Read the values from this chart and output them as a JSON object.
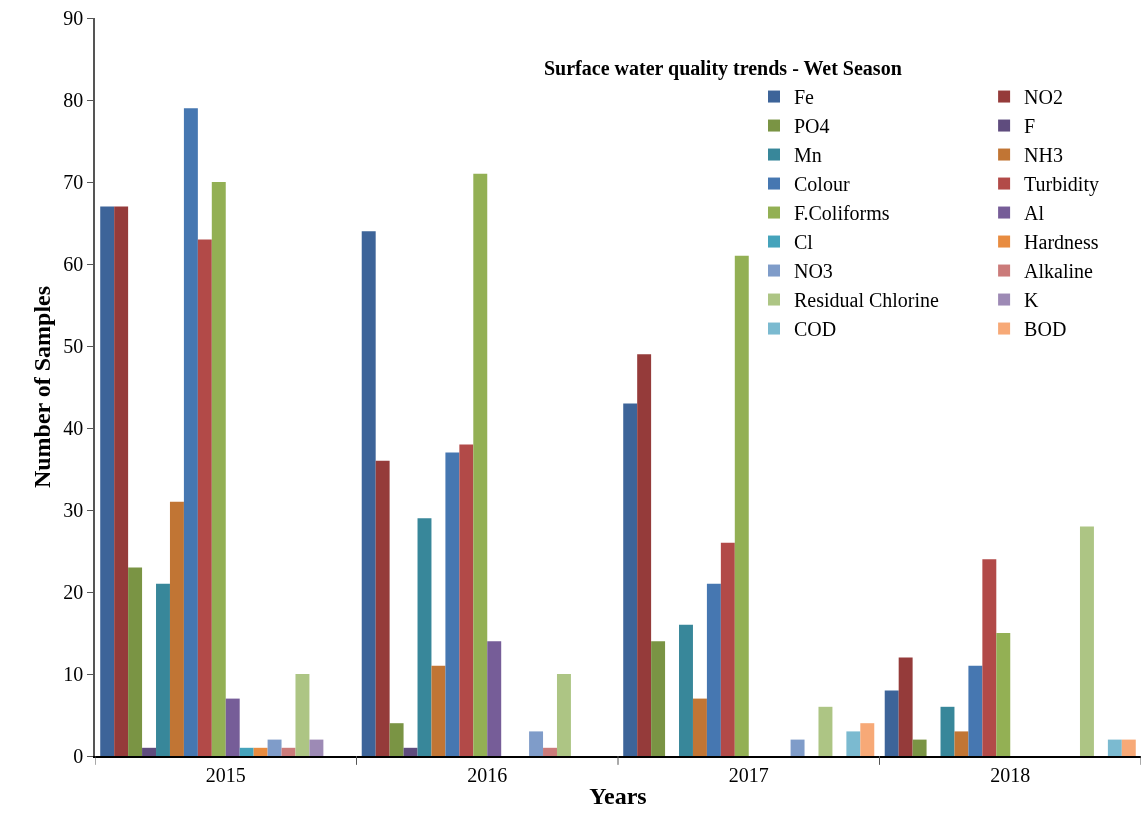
{
  "chart_data": {
    "type": "bar",
    "title": "Surface water quality trends - Wet Season",
    "xlabel": "Years",
    "ylabel": "Number of Samples",
    "categories": [
      "2015",
      "2016",
      "2017",
      "2018"
    ],
    "ylim": [
      0,
      90
    ],
    "yticks": [
      0,
      10,
      20,
      30,
      40,
      50,
      60,
      70,
      80,
      90
    ],
    "legend": "top right",
    "series": [
      {
        "name": "Fe",
        "color": "#3d6499",
        "values": [
          67,
          64,
          43,
          8
        ]
      },
      {
        "name": "NO2",
        "color": "#953b3a",
        "values": [
          67,
          36,
          49,
          12
        ]
      },
      {
        "name": "PO4",
        "color": "#7a9444",
        "values": [
          23,
          4,
          14,
          2
        ]
      },
      {
        "name": "F",
        "color": "#5f4c7e",
        "values": [
          1,
          1,
          0,
          0
        ]
      },
      {
        "name": "Mn",
        "color": "#38879a",
        "values": [
          21,
          29,
          16,
          6
        ]
      },
      {
        "name": "NH3",
        "color": "#c17534",
        "values": [
          31,
          11,
          7,
          3
        ]
      },
      {
        "name": "Colour",
        "color": "#4677b1",
        "values": [
          79,
          37,
          21,
          11
        ]
      },
      {
        "name": "Turbidity",
        "color": "#b24a48",
        "values": [
          63,
          38,
          26,
          24
        ]
      },
      {
        "name": "F.Coliforms",
        "color": "#93b054",
        "values": [
          70,
          71,
          61,
          15
        ]
      },
      {
        "name": "Al",
        "color": "#765d98",
        "values": [
          7,
          14,
          0,
          0
        ]
      },
      {
        "name": "Cl",
        "color": "#45a3bb",
        "values": [
          1,
          0,
          0,
          0
        ]
      },
      {
        "name": "Hardness",
        "color": "#e88c40",
        "values": [
          1,
          0,
          0,
          0
        ]
      },
      {
        "name": "NO3",
        "color": "#7f9cc9",
        "values": [
          2,
          3,
          2,
          0
        ]
      },
      {
        "name": "Alkaline",
        "color": "#cb7b7a",
        "values": [
          1,
          1,
          0,
          0
        ]
      },
      {
        "name": "Residual Chlorine",
        "color": "#adc584",
        "values": [
          10,
          10,
          6,
          28
        ]
      },
      {
        "name": "K",
        "color": "#9d8ab5",
        "values": [
          2,
          0,
          0,
          0
        ]
      },
      {
        "name": "COD",
        "color": "#7bbad0",
        "values": [
          0,
          0,
          3,
          2
        ]
      },
      {
        "name": "BOD",
        "color": "#f7a977",
        "values": [
          0,
          0,
          4,
          2
        ]
      }
    ]
  }
}
